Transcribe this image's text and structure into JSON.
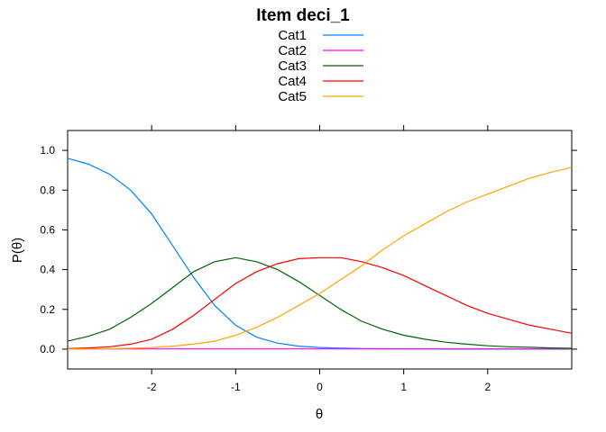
{
  "chart_data": {
    "type": "line",
    "title": "Item deci_1",
    "xlabel": "θ",
    "ylabel": "P(θ)",
    "xlim": [
      -3,
      3
    ],
    "ylim": [
      -0.1,
      1.1
    ],
    "xticks": [
      -2,
      -1,
      0,
      1,
      2
    ],
    "yticks": [
      0.0,
      0.2,
      0.4,
      0.6,
      0.8,
      1.0
    ],
    "xtick_labels": [
      "-2",
      "-1",
      "0",
      "1",
      "2"
    ],
    "ytick_labels": [
      "0.0",
      "0.2",
      "0.4",
      "0.6",
      "0.8",
      "1.0"
    ],
    "grid": false,
    "legend_position": "top",
    "x": [
      -3.0,
      -2.75,
      -2.5,
      -2.25,
      -2.0,
      -1.75,
      -1.5,
      -1.25,
      -1.0,
      -0.75,
      -0.5,
      -0.25,
      0.0,
      0.25,
      0.5,
      0.75,
      1.0,
      1.25,
      1.5,
      1.75,
      2.0,
      2.25,
      2.5,
      2.75,
      3.0
    ],
    "series": [
      {
        "name": "Cat1",
        "color": "#0080ff",
        "values": [
          0.96,
          0.93,
          0.88,
          0.8,
          0.68,
          0.52,
          0.36,
          0.22,
          0.12,
          0.06,
          0.03,
          0.015,
          0.008,
          0.005,
          0.003,
          0.002,
          0.001,
          0.001,
          0.0,
          0.0,
          0.0,
          0.0,
          0.0,
          0.0,
          0.0
        ]
      },
      {
        "name": "Cat2",
        "color": "#ff00ff",
        "values": [
          0.001,
          0.001,
          0.001,
          0.001,
          0.001,
          0.001,
          0.001,
          0.001,
          0.001,
          0.001,
          0.001,
          0.001,
          0.001,
          0.001,
          0.001,
          0.001,
          0.001,
          0.001,
          0.001,
          0.001,
          0.001,
          0.001,
          0.001,
          0.001,
          0.001
        ]
      },
      {
        "name": "Cat3",
        "color": "#006400",
        "values": [
          0.04,
          0.065,
          0.1,
          0.16,
          0.23,
          0.31,
          0.39,
          0.44,
          0.46,
          0.44,
          0.4,
          0.34,
          0.27,
          0.2,
          0.14,
          0.1,
          0.07,
          0.05,
          0.035,
          0.025,
          0.017,
          0.012,
          0.009,
          0.006,
          0.004
        ]
      },
      {
        "name": "Cat4",
        "color": "#ff0000",
        "values": [
          0.003,
          0.006,
          0.012,
          0.025,
          0.05,
          0.1,
          0.17,
          0.25,
          0.33,
          0.39,
          0.43,
          0.455,
          0.46,
          0.46,
          0.44,
          0.41,
          0.37,
          0.32,
          0.27,
          0.22,
          0.18,
          0.15,
          0.12,
          0.1,
          0.08
        ]
      },
      {
        "name": "Cat5",
        "color": "#ffa500",
        "values": [
          0.0,
          0.001,
          0.002,
          0.004,
          0.008,
          0.015,
          0.025,
          0.04,
          0.07,
          0.11,
          0.16,
          0.22,
          0.28,
          0.35,
          0.42,
          0.5,
          0.57,
          0.63,
          0.69,
          0.74,
          0.78,
          0.82,
          0.86,
          0.89,
          0.915
        ]
      }
    ]
  }
}
